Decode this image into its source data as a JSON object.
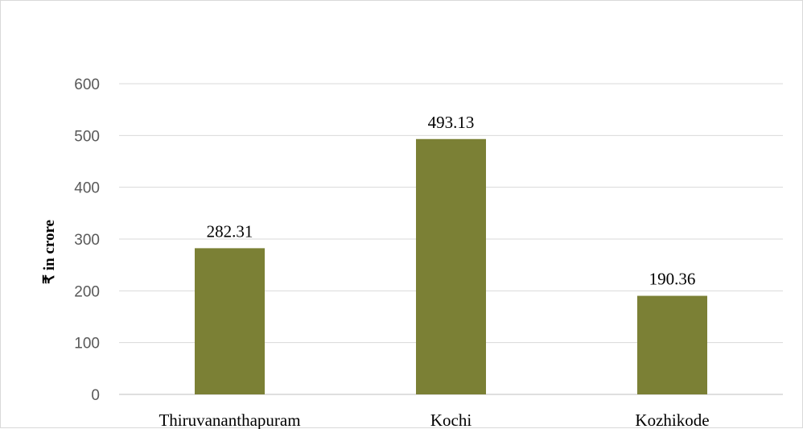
{
  "chart_data": {
    "type": "bar",
    "categories": [
      "Thiruvananthapuram",
      "Kochi",
      "Kozhikode"
    ],
    "values": [
      282.31,
      493.13,
      190.36
    ],
    "data_labels": [
      "282.31",
      "493.13",
      "190.36"
    ],
    "ylabel": "₹ in crore",
    "ylim": [
      0,
      600
    ],
    "yticks": [
      0,
      100,
      200,
      300,
      400,
      500,
      600
    ],
    "grid": true,
    "legend": "none",
    "bar_color": "#7b8035"
  }
}
